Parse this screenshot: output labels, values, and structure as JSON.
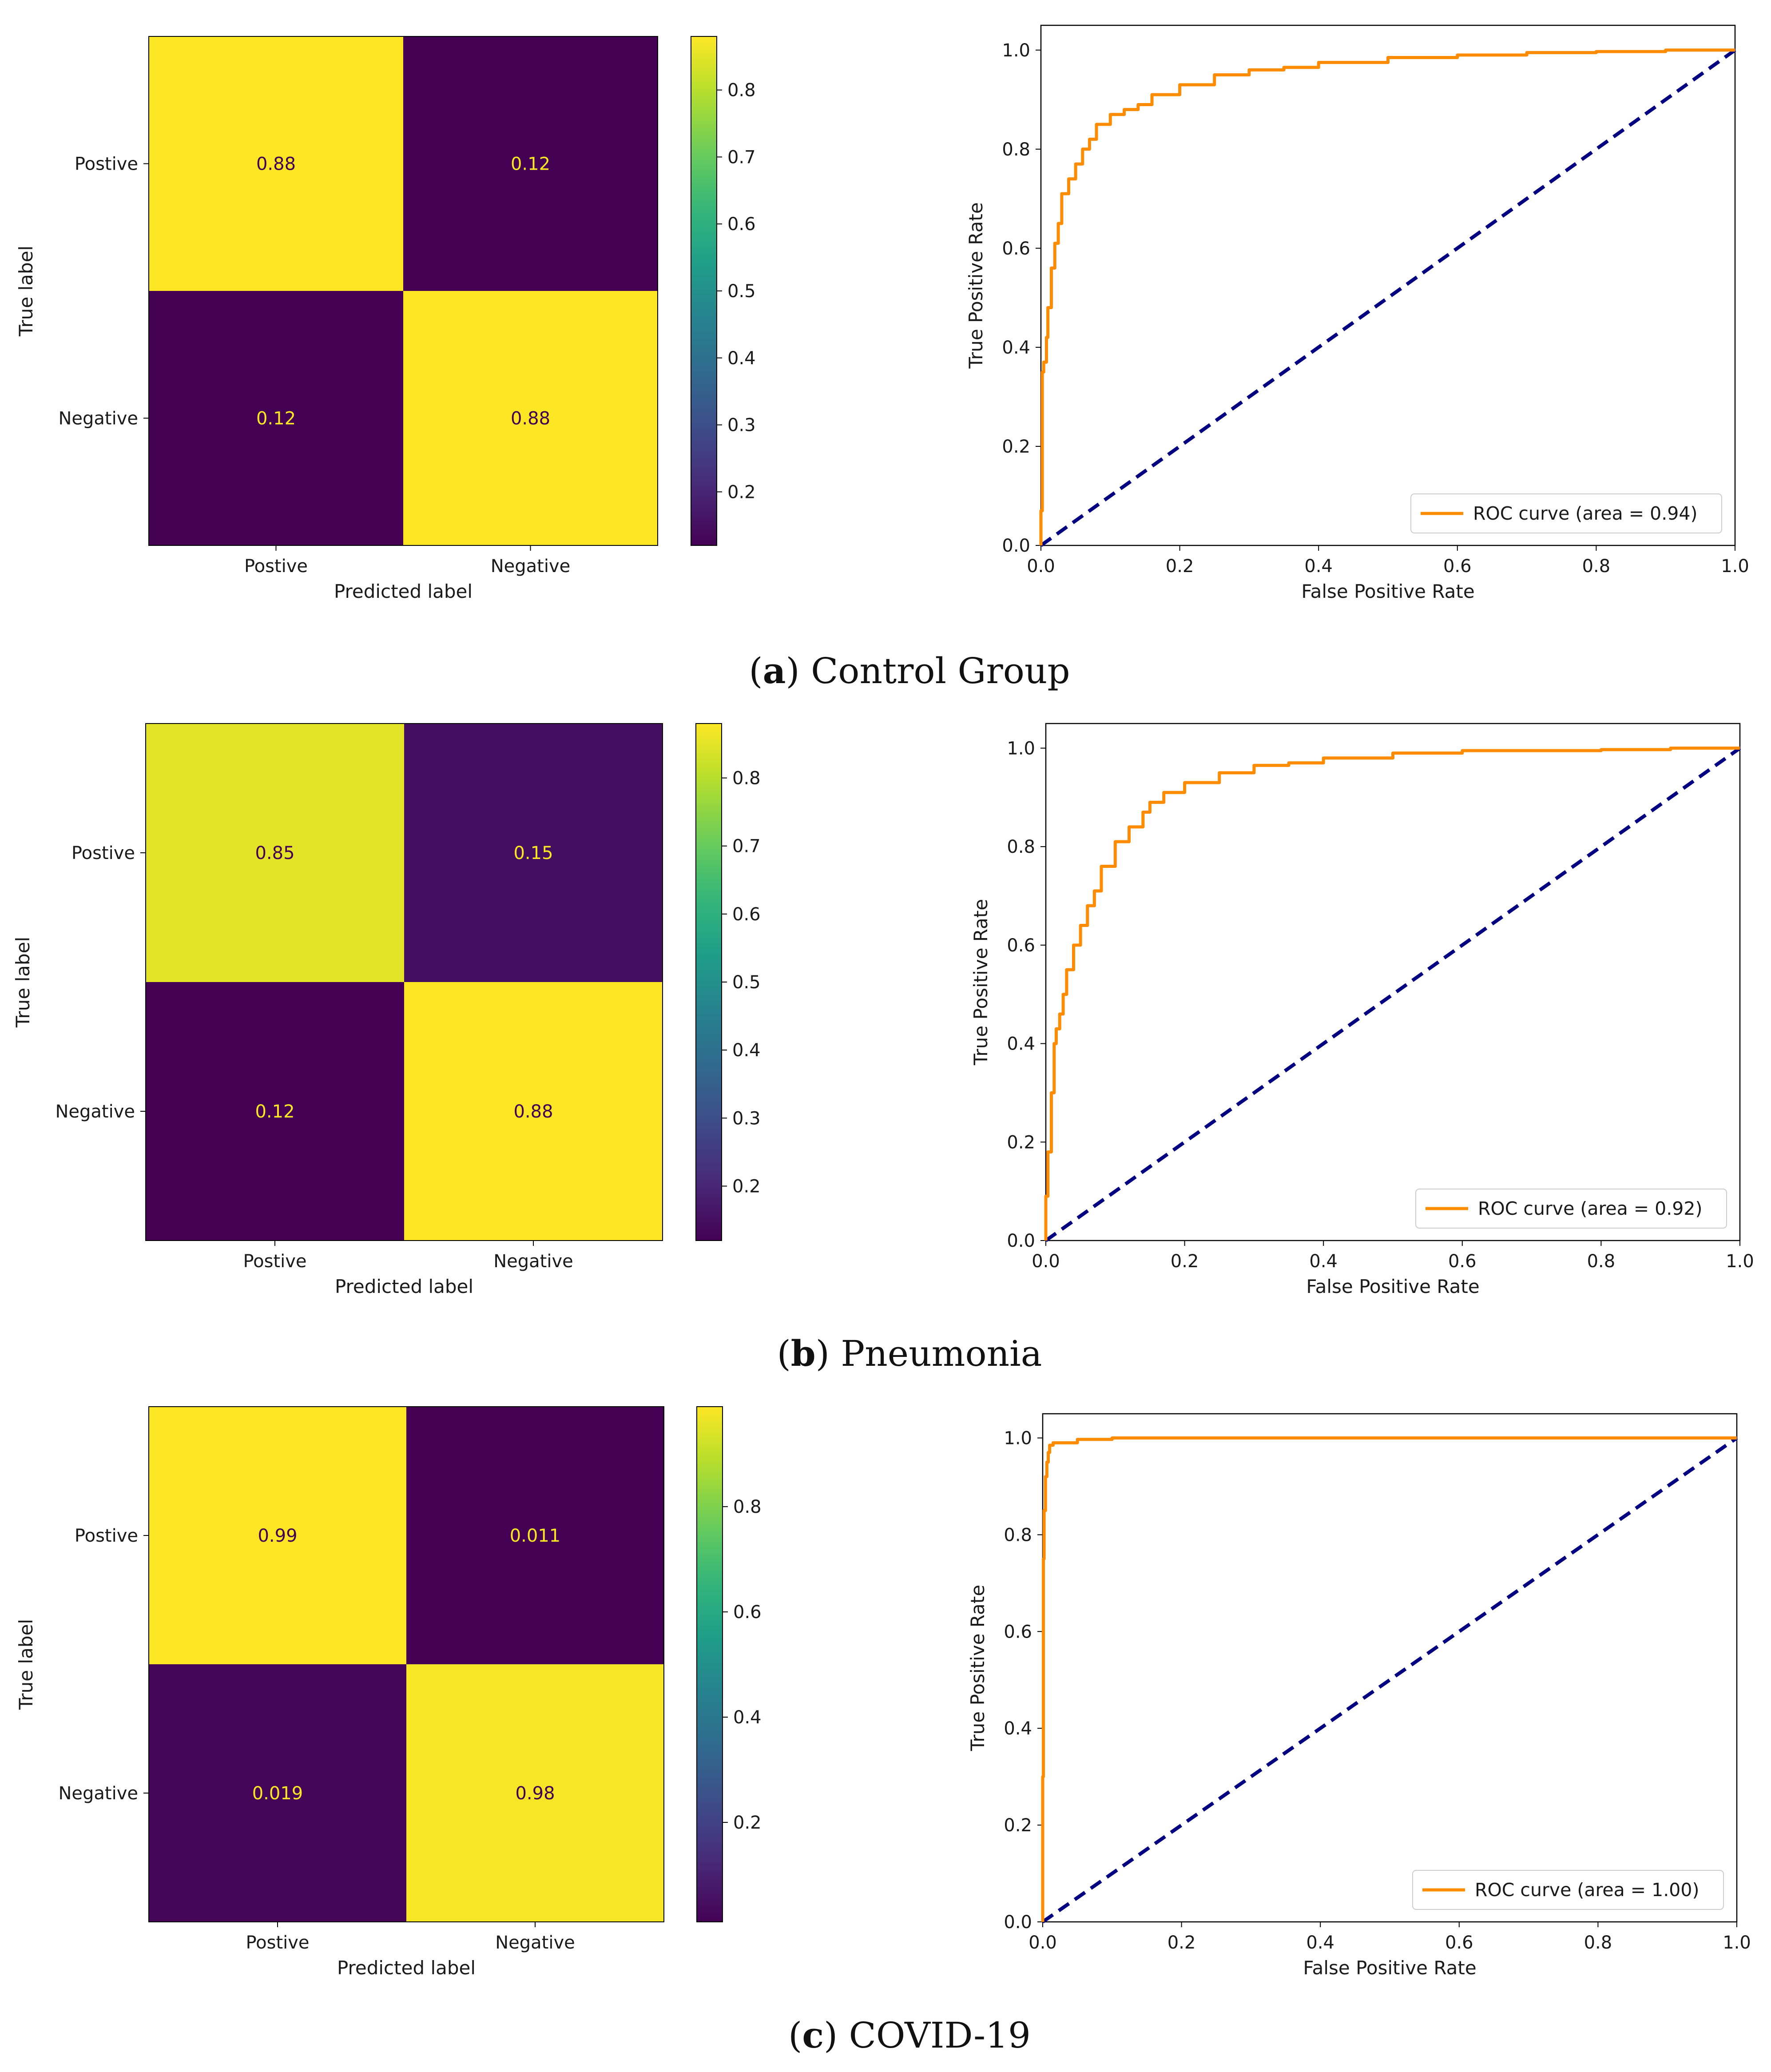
{
  "colors": {
    "roc": "#ff8c00",
    "chance": "#000080",
    "cell_text_on_dark": "#fde725",
    "cell_text_on_light": "#440154"
  },
  "chart_data": [
    {
      "type": "heatmap",
      "panel": "a",
      "rows": [
        "Postive",
        "Negative"
      ],
      "columns": [
        "Postive",
        "Negative"
      ],
      "values": [
        [
          0.88,
          0.12
        ],
        [
          0.12,
          0.88
        ]
      ],
      "cell_labels": [
        [
          "0.88",
          "0.12"
        ],
        [
          "0.12",
          "0.88"
        ]
      ],
      "xlabel": "Predicted label",
      "ylabel": "True label",
      "colormap": "viridis",
      "colorbar": {
        "min": 0.12,
        "max": 0.88,
        "ticks": [
          0.2,
          0.3,
          0.4,
          0.5,
          0.6,
          0.7,
          0.8
        ],
        "tick_labels": [
          "0.2",
          "0.3",
          "0.4",
          "0.5",
          "0.6",
          "0.7",
          "0.8"
        ]
      }
    },
    {
      "type": "line",
      "panel": "a",
      "xlabel": "False Positive Rate",
      "ylabel": "True Positive Rate",
      "xlim": [
        0,
        1
      ],
      "ylim": [
        0,
        1.05
      ],
      "x_ticks": [
        "0.0",
        "0.2",
        "0.4",
        "0.6",
        "0.8",
        "1.0"
      ],
      "y_ticks": [
        "0.0",
        "0.2",
        "0.4",
        "0.6",
        "0.8",
        "1.0"
      ],
      "legend": "lower right",
      "series": [
        {
          "name": "ROC curve (area = 0.94)",
          "x": [
            0,
            0.002,
            0.004,
            0.008,
            0.01,
            0.015,
            0.02,
            0.025,
            0.03,
            0.04,
            0.05,
            0.06,
            0.07,
            0.08,
            0.1,
            0.12,
            0.14,
            0.16,
            0.2,
            0.25,
            0.3,
            0.35,
            0.4,
            0.5,
            0.6,
            0.7,
            0.8,
            0.9,
            1.0
          ],
          "y": [
            0,
            0.07,
            0.35,
            0.37,
            0.42,
            0.48,
            0.56,
            0.61,
            0.65,
            0.71,
            0.74,
            0.77,
            0.8,
            0.82,
            0.85,
            0.87,
            0.88,
            0.89,
            0.91,
            0.93,
            0.95,
            0.96,
            0.965,
            0.975,
            0.985,
            0.99,
            0.995,
            0.997,
            1.0
          ]
        },
        {
          "x": [
            0,
            1
          ],
          "y": [
            0,
            1
          ]
        }
      ]
    },
    {
      "type": "heatmap",
      "panel": "b",
      "rows": [
        "Postive",
        "Negative"
      ],
      "columns": [
        "Postive",
        "Negative"
      ],
      "values": [
        [
          0.85,
          0.15
        ],
        [
          0.12,
          0.88
        ]
      ],
      "cell_labels": [
        [
          "0.85",
          "0.15"
        ],
        [
          "0.12",
          "0.88"
        ]
      ],
      "xlabel": "Predicted label",
      "ylabel": "True label",
      "colormap": "viridis",
      "colorbar": {
        "min": 0.12,
        "max": 0.88,
        "ticks": [
          0.2,
          0.3,
          0.4,
          0.5,
          0.6,
          0.7,
          0.8
        ],
        "tick_labels": [
          "0.2",
          "0.3",
          "0.4",
          "0.5",
          "0.6",
          "0.7",
          "0.8"
        ]
      }
    },
    {
      "type": "line",
      "panel": "b",
      "xlabel": "False Positive Rate",
      "ylabel": "True Positive Rate",
      "xlim": [
        0,
        1
      ],
      "ylim": [
        0,
        1.05
      ],
      "x_ticks": [
        "0.0",
        "0.2",
        "0.4",
        "0.6",
        "0.8",
        "1.0"
      ],
      "y_ticks": [
        "0.0",
        "0.2",
        "0.4",
        "0.6",
        "0.8",
        "1.0"
      ],
      "legend": "lower right",
      "series": [
        {
          "name": "ROC curve (area = 0.92)",
          "x": [
            0,
            0.003,
            0.008,
            0.012,
            0.015,
            0.02,
            0.025,
            0.03,
            0.04,
            0.05,
            0.06,
            0.07,
            0.08,
            0.1,
            0.12,
            0.14,
            0.15,
            0.17,
            0.2,
            0.25,
            0.3,
            0.35,
            0.4,
            0.5,
            0.6,
            0.7,
            0.8,
            0.9,
            1.0
          ],
          "y": [
            0,
            0.09,
            0.18,
            0.3,
            0.4,
            0.43,
            0.46,
            0.5,
            0.55,
            0.6,
            0.64,
            0.68,
            0.71,
            0.76,
            0.81,
            0.84,
            0.87,
            0.89,
            0.91,
            0.93,
            0.95,
            0.965,
            0.97,
            0.98,
            0.99,
            0.995,
            0.995,
            0.997,
            1.0
          ]
        },
        {
          "x": [
            0,
            1
          ],
          "y": [
            0,
            1
          ]
        }
      ]
    },
    {
      "type": "heatmap",
      "panel": "c",
      "rows": [
        "Postive",
        "Negative"
      ],
      "columns": [
        "Postive",
        "Negative"
      ],
      "values": [
        [
          0.99,
          0.011
        ],
        [
          0.019,
          0.98
        ]
      ],
      "cell_labels": [
        [
          "0.99",
          "0.011"
        ],
        [
          "0.019",
          "0.98"
        ]
      ],
      "xlabel": "Predicted label",
      "ylabel": "True label",
      "colormap": "viridis",
      "colorbar": {
        "min": 0.011,
        "max": 0.99,
        "ticks": [
          0.2,
          0.4,
          0.6,
          0.8
        ],
        "tick_labels": [
          "0.2",
          "0.4",
          "0.6",
          "0.8"
        ]
      }
    },
    {
      "type": "line",
      "panel": "c",
      "xlabel": "False Positive Rate",
      "ylabel": "True Positive Rate",
      "xlim": [
        0,
        1
      ],
      "ylim": [
        0,
        1.05
      ],
      "x_ticks": [
        "0.0",
        "0.2",
        "0.4",
        "0.6",
        "0.8",
        "1.0"
      ],
      "y_ticks": [
        "0.0",
        "0.2",
        "0.4",
        "0.6",
        "0.8",
        "1.0"
      ],
      "legend": "lower right",
      "series": [
        {
          "name": "ROC curve (area = 1.00)",
          "x": [
            0,
            0.001,
            0.002,
            0.004,
            0.006,
            0.008,
            0.01,
            0.015,
            0.02,
            0.05,
            0.06,
            0.1,
            0.12,
            0.2,
            0.4,
            0.6,
            0.8,
            1.0
          ],
          "y": [
            0,
            0.3,
            0.75,
            0.85,
            0.92,
            0.95,
            0.97,
            0.985,
            0.99,
            0.99,
            0.997,
            0.997,
            1.0,
            1.0,
            1.0,
            1.0,
            1.0,
            1.0
          ]
        },
        {
          "x": [
            0,
            1
          ],
          "y": [
            0,
            1
          ]
        }
      ]
    }
  ],
  "captions": [
    {
      "letter": "a",
      "open": "(",
      "close": ")",
      "text": " Control Group"
    },
    {
      "letter": "b",
      "open": "(",
      "close": ")",
      "text": " Pneumonia"
    },
    {
      "letter": "c",
      "open": "(",
      "close": ")",
      "text": " COVID-19"
    }
  ]
}
